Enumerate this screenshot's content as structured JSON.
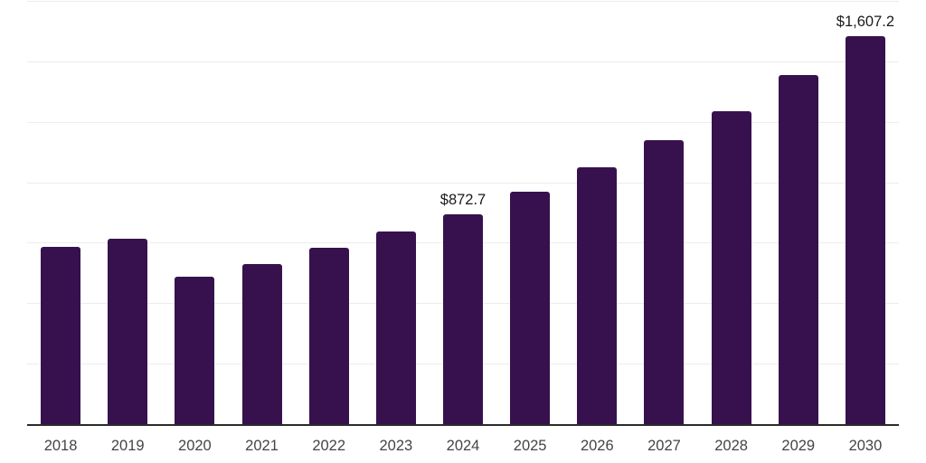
{
  "chart_style": {
    "background_color": "#ffffff",
    "bar_color": "#37114D",
    "gridline_color": "#ececec",
    "axis_line_color": "#2a2a2a",
    "year_label_color": "#444444",
    "value_label_color": "#1a1a1a"
  },
  "chart_data": {
    "type": "bar",
    "title": "",
    "xlabel": "",
    "ylabel": "",
    "categories": [
      "2018",
      "2019",
      "2020",
      "2021",
      "2022",
      "2023",
      "2024",
      "2025",
      "2026",
      "2027",
      "2028",
      "2029",
      "2030"
    ],
    "values": [
      737,
      771,
      613,
      667,
      734,
      800,
      872.7,
      966,
      1066,
      1178,
      1298,
      1448,
      1607.2
    ],
    "data_labels": [
      "",
      "",
      "",
      "",
      "",
      "",
      "$872.7",
      "",
      "",
      "",
      "",
      "",
      "$1,607.2"
    ],
    "ylim": [
      0,
      1750
    ],
    "gridline_step": 250,
    "grid": true,
    "legend": "none",
    "y_tick_labels_visible": false,
    "x_tick_labels_visible": true
  }
}
